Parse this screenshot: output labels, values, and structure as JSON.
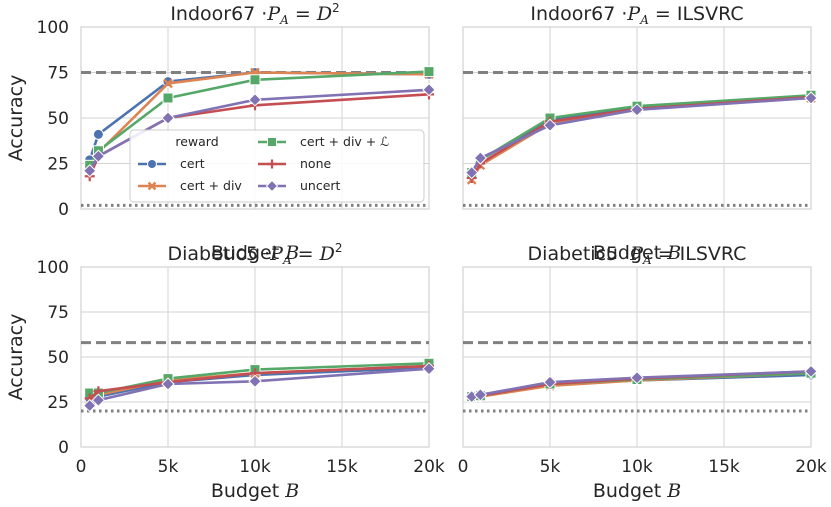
{
  "chart_data": [
    {
      "type": "line",
      "title": "Indoor67 ·P_A = D²",
      "title_parts": {
        "dataset": "Indoor67",
        "sep": "·",
        "var": "P",
        "sub": "A",
        "eq": "=",
        "rhs": "D",
        "sup": "2"
      },
      "xlabel": "Budget B",
      "ylabel": "Accuracy",
      "xlim": [
        0,
        20000
      ],
      "ylim": [
        0,
        100
      ],
      "x_ticks": [
        0,
        5000,
        10000,
        15000,
        20000
      ],
      "x_tick_labels": [
        "",
        "",
        "",
        "",
        ""
      ],
      "y_ticks": [
        0,
        25,
        50,
        75,
        100
      ],
      "y_tick_labels": [
        "0",
        "25",
        "50",
        "75",
        "100"
      ],
      "hlines": [
        {
          "y": 75,
          "style": "dashed"
        },
        {
          "y": 2,
          "style": "dotted"
        }
      ],
      "legend_position": "lower-right",
      "series": [
        {
          "name": "cert",
          "x": [
            500,
            1000,
            5000,
            10000,
            20000
          ],
          "y": [
            27,
            41,
            70,
            75,
            74
          ]
        },
        {
          "name": "cert + div",
          "x": [
            500,
            1000,
            5000,
            10000,
            20000
          ],
          "y": [
            22,
            31,
            69,
            75,
            74
          ]
        },
        {
          "name": "cert + div + ℒ",
          "x": [
            500,
            1000,
            5000,
            10000,
            20000
          ],
          "y": [
            24,
            32,
            61,
            71,
            75.5
          ]
        },
        {
          "name": "none",
          "x": [
            500,
            1000,
            5000,
            10000,
            20000
          ],
          "y": [
            18,
            29,
            50,
            57,
            63
          ]
        },
        {
          "name": "uncert",
          "x": [
            500,
            1000,
            5000,
            10000,
            20000
          ],
          "y": [
            21,
            29,
            50,
            60,
            65.5
          ]
        }
      ]
    },
    {
      "type": "line",
      "title": "Indoor67 ·P_A = ILSVRC",
      "title_parts": {
        "dataset": "Indoor67",
        "sep": "·",
        "var": "P",
        "sub": "A",
        "eq": "=",
        "rhs": "ILSVRC",
        "sup": ""
      },
      "xlabel": "Budget B",
      "ylabel": "",
      "xlim": [
        0,
        20000
      ],
      "ylim": [
        0,
        100
      ],
      "x_ticks": [
        0,
        5000,
        10000,
        15000,
        20000
      ],
      "x_tick_labels": [
        "",
        "",
        "",
        "",
        ""
      ],
      "y_ticks": [
        0,
        25,
        50,
        75,
        100
      ],
      "y_tick_labels": [
        "",
        "",
        "",
        "",
        ""
      ],
      "hlines": [
        {
          "y": 75,
          "style": "dashed"
        },
        {
          "y": 2,
          "style": "dotted"
        }
      ],
      "series": [
        {
          "name": "cert",
          "x": [
            500,
            1000,
            5000,
            10000,
            20000
          ],
          "y": [
            19,
            27,
            49,
            56,
            62
          ]
        },
        {
          "name": "cert + div",
          "x": [
            500,
            1000,
            5000,
            10000,
            20000
          ],
          "y": [
            16,
            24,
            47,
            55,
            61
          ]
        },
        {
          "name": "cert + div + ℒ",
          "x": [
            500,
            1000,
            5000,
            10000,
            20000
          ],
          "y": [
            20,
            27,
            50,
            56.5,
            62.5
          ]
        },
        {
          "name": "none",
          "x": [
            500,
            1000,
            5000,
            10000,
            20000
          ],
          "y": [
            17,
            25,
            48,
            55,
            61.5
          ]
        },
        {
          "name": "uncert",
          "x": [
            500,
            1000,
            5000,
            10000,
            20000
          ],
          "y": [
            20,
            28,
            46,
            54.5,
            61
          ]
        }
      ]
    },
    {
      "type": "line",
      "title": "Diabetic5 ·P_A = D²",
      "title_parts": {
        "dataset": "Diabetic5",
        "sep": "·",
        "var": "P",
        "sub": "A",
        "eq": "=",
        "rhs": "D",
        "sup": "2"
      },
      "xlabel": "Budget B",
      "ylabel": "Accuracy",
      "xlim": [
        0,
        20000
      ],
      "ylim": [
        0,
        100
      ],
      "x_ticks": [
        0,
        5000,
        10000,
        15000,
        20000
      ],
      "x_tick_labels": [
        "0",
        "5k",
        "10k",
        "15k",
        "20k"
      ],
      "y_ticks": [
        0,
        25,
        50,
        75,
        100
      ],
      "y_tick_labels": [
        "0",
        "25",
        "50",
        "75",
        "100"
      ],
      "hlines": [
        {
          "y": 58,
          "style": "dashed"
        },
        {
          "y": 20,
          "style": "dotted"
        }
      ],
      "series": [
        {
          "name": "cert",
          "x": [
            500,
            1000,
            5000,
            10000,
            20000
          ],
          "y": [
            27,
            28,
            36,
            40,
            44
          ]
        },
        {
          "name": "cert + div",
          "x": [
            500,
            1000,
            5000,
            10000,
            20000
          ],
          "y": [
            26,
            29,
            37,
            41,
            45
          ]
        },
        {
          "name": "cert + div + ℒ",
          "x": [
            500,
            1000,
            5000,
            10000,
            20000
          ],
          "y": [
            30,
            30,
            38,
            43,
            46.5
          ]
        },
        {
          "name": "none",
          "x": [
            500,
            1000,
            5000,
            10000,
            20000
          ],
          "y": [
            27,
            31,
            36,
            41,
            45
          ]
        },
        {
          "name": "uncert",
          "x": [
            500,
            1000,
            5000,
            10000,
            20000
          ],
          "y": [
            23,
            26,
            35,
            36.5,
            43.5
          ]
        }
      ]
    },
    {
      "type": "line",
      "title": "Diabetic5 ·P_A = ILSVRC",
      "title_parts": {
        "dataset": "Diabetic5",
        "sep": "·",
        "var": "P",
        "sub": "A",
        "eq": "=",
        "rhs": "ILSVRC",
        "sup": ""
      },
      "xlabel": "Budget B",
      "ylabel": "",
      "xlim": [
        0,
        20000
      ],
      "ylim": [
        0,
        100
      ],
      "x_ticks": [
        0,
        5000,
        10000,
        15000,
        20000
      ],
      "x_tick_labels": [
        "0",
        "5k",
        "10k",
        "15k",
        "20k"
      ],
      "y_ticks": [
        0,
        25,
        50,
        75,
        100
      ],
      "y_tick_labels": [
        "",
        "",
        "",
        "",
        ""
      ],
      "hlines": [
        {
          "y": 58,
          "style": "dashed"
        },
        {
          "y": 20,
          "style": "dotted"
        }
      ],
      "series": [
        {
          "name": "cert",
          "x": [
            500,
            1000,
            5000,
            10000,
            20000
          ],
          "y": [
            28,
            28,
            35,
            37,
            40
          ]
        },
        {
          "name": "cert + div",
          "x": [
            500,
            1000,
            5000,
            10000,
            20000
          ],
          "y": [
            28,
            28,
            34,
            37,
            41
          ]
        },
        {
          "name": "cert + div + ℒ",
          "x": [
            500,
            1000,
            5000,
            10000,
            20000
          ],
          "y": [
            28,
            28.5,
            35,
            37.5,
            41
          ]
        },
        {
          "name": "none",
          "x": [
            500,
            1000,
            5000,
            10000,
            20000
          ],
          "y": [
            28,
            28.5,
            35,
            38,
            42
          ]
        },
        {
          "name": "uncert",
          "x": [
            500,
            1000,
            5000,
            10000,
            20000
          ],
          "y": [
            28,
            29,
            36,
            38.5,
            42
          ]
        }
      ]
    }
  ],
  "legend": {
    "title": "reward",
    "entries": [
      {
        "name": "cert",
        "color": "#4c72b0",
        "marker": "circle"
      },
      {
        "name": "cert + div",
        "color": "#dd8452",
        "marker": "x"
      },
      {
        "name": "cert + div + ℒ",
        "color": "#55a868",
        "marker": "square"
      },
      {
        "name": "none",
        "color": "#c44e52",
        "marker": "plus"
      },
      {
        "name": "uncert",
        "color": "#8172b3",
        "marker": "diamond"
      }
    ]
  },
  "style": {
    "background": "#ffffff",
    "grid_color": "#d3d3d3",
    "text_color": "#262626",
    "reference_line_color": "#808080"
  }
}
